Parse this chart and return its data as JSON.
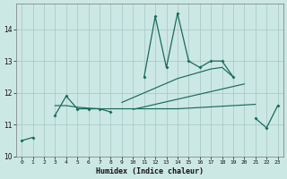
{
  "xlabel": "Humidex (Indice chaleur)",
  "bg_color": "#cce8e4",
  "grid_color": "#aaccc8",
  "line_color": "#1a6b5a",
  "x_values": [
    0,
    1,
    2,
    3,
    4,
    5,
    6,
    7,
    8,
    9,
    10,
    11,
    12,
    13,
    14,
    15,
    16,
    17,
    18,
    19,
    20,
    21,
    22,
    23
  ],
  "line1_y": [
    10.5,
    10.6,
    null,
    11.3,
    11.9,
    11.5,
    11.5,
    11.5,
    11.4,
    null,
    null,
    12.5,
    14.4,
    12.8,
    14.5,
    13.0,
    12.8,
    13.0,
    13.0,
    12.5,
    null,
    11.2,
    10.9,
    11.6
  ],
  "line2_y": [
    null,
    null,
    null,
    11.6,
    11.6,
    11.55,
    11.52,
    11.5,
    11.5,
    11.5,
    11.5,
    11.5,
    11.5,
    11.5,
    11.5,
    11.52,
    11.54,
    11.56,
    11.58,
    11.6,
    11.62,
    11.64,
    null,
    null
  ],
  "line3_y": [
    10.5,
    null,
    null,
    null,
    null,
    null,
    null,
    null,
    null,
    11.7,
    11.85,
    12.0,
    12.15,
    12.3,
    12.45,
    12.55,
    12.65,
    12.75,
    12.8,
    12.5,
    null,
    null,
    null,
    null
  ],
  "line4_y": [
    null,
    null,
    null,
    null,
    null,
    null,
    null,
    null,
    null,
    null,
    11.48,
    11.56,
    11.64,
    11.72,
    11.8,
    11.88,
    11.96,
    12.04,
    12.12,
    12.2,
    12.28,
    null,
    null,
    null
  ],
  "ylim": [
    10,
    14.8
  ],
  "yticks": [
    10,
    11,
    12,
    13,
    14
  ],
  "xticks": [
    0,
    1,
    2,
    3,
    4,
    5,
    6,
    7,
    8,
    9,
    10,
    11,
    12,
    13,
    14,
    15,
    16,
    17,
    18,
    19,
    20,
    21,
    22,
    23
  ]
}
